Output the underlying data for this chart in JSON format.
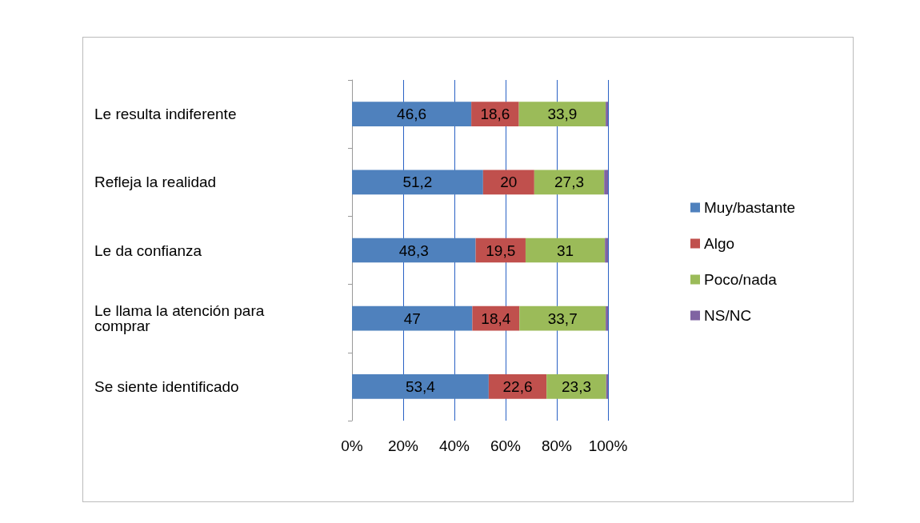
{
  "chart_data": {
    "type": "bar",
    "orientation": "horizontal",
    "stacked": true,
    "categories": [
      "Le resulta indiferente",
      "Refleja la realidad",
      "Le da confianza",
      "Le llama la atención para comprar",
      "Se siente identificado"
    ],
    "series": [
      {
        "name": "Muy/bastante",
        "color": "#4f81bd",
        "values": [
          46.6,
          51.2,
          48.3,
          47,
          53.4
        ],
        "value_labels": [
          "46,6",
          "51,2",
          "48,3",
          "47",
          "53,4"
        ]
      },
      {
        "name": "Algo",
        "color": "#c0504d",
        "values": [
          18.6,
          20,
          19.5,
          18.4,
          22.6
        ],
        "value_labels": [
          "18,6",
          "20",
          "19,5",
          "18,4",
          "22,6"
        ]
      },
      {
        "name": "Poco/nada",
        "color": "#9bbb59",
        "values": [
          33.9,
          27.3,
          31,
          33.7,
          23.3
        ],
        "value_labels": [
          "33,9",
          "27,3",
          "31",
          "33,7",
          "23,3"
        ]
      },
      {
        "name": "NS/NC",
        "color": "#8064a2",
        "values": [
          0.9,
          1.5,
          1.2,
          0.9,
          0.7
        ],
        "value_labels": [
          null,
          null,
          null,
          null,
          null
        ]
      }
    ],
    "xlim": [
      0,
      100
    ],
    "xticks": [
      {
        "value": 0,
        "label": "0%"
      },
      {
        "value": 20,
        "label": "20%"
      },
      {
        "value": 40,
        "label": "40%"
      },
      {
        "value": 60,
        "label": "60%"
      },
      {
        "value": 80,
        "label": "80%"
      },
      {
        "value": 100,
        "label": "100%"
      }
    ],
    "grid": "x",
    "legend": "right"
  }
}
